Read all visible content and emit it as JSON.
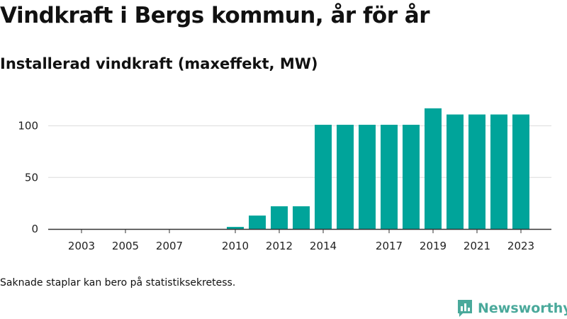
{
  "header": {
    "title": "Vindkraft i Bergs kommun, år för år",
    "subtitle": "Installerad vindkraft (maxeffekt, MW)"
  },
  "footer": {
    "note": "Saknade staplar kan bero på statistiksekretess.",
    "brand_name": "Newsworthy",
    "brand_icon": "newsworthy-logo-icon"
  },
  "colors": {
    "bar": "#00a49a",
    "brand": "#4aa99b",
    "grid": "#dcdcdc",
    "axis": "#333333"
  },
  "chart_data": {
    "type": "bar",
    "title": "Installerad vindkraft (maxeffekt, MW)",
    "xlabel": "",
    "ylabel": "",
    "x": [
      2003,
      2004,
      2005,
      2006,
      2007,
      2008,
      2009,
      2010,
      2011,
      2012,
      2013,
      2014,
      2015,
      2016,
      2017,
      2018,
      2019,
      2020,
      2021,
      2022,
      2023
    ],
    "values": [
      0,
      0,
      0,
      0,
      0,
      0,
      0,
      2,
      13,
      22,
      22,
      101,
      101,
      101,
      101,
      101,
      117,
      111,
      111,
      111,
      111
    ],
    "x_tick_labels": [
      2003,
      2005,
      2007,
      2010,
      2012,
      2014,
      2017,
      2019,
      2021,
      2023
    ],
    "y_ticks": [
      0,
      50,
      100
    ],
    "ylim": [
      0,
      125
    ],
    "grid": true,
    "legend": "none"
  }
}
